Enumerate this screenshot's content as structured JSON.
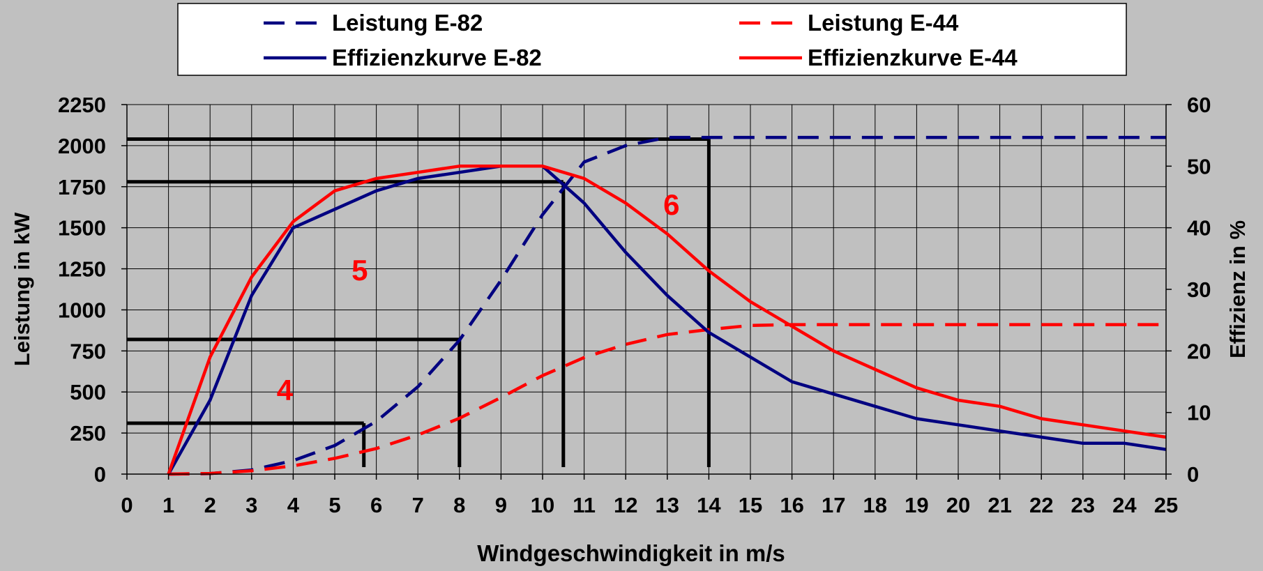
{
  "chart_data": {
    "type": "line",
    "title": "",
    "xlabel": "Windgeschwindigkeit in m/s",
    "ylabel": "Leistung in kW",
    "y2label": "Effizienz in %",
    "xlim": [
      0,
      25
    ],
    "ylim": [
      0,
      2250
    ],
    "y2lim": [
      0,
      60
    ],
    "x_ticks": [
      0,
      1,
      2,
      3,
      4,
      5,
      6,
      7,
      8,
      9,
      10,
      11,
      12,
      13,
      14,
      15,
      16,
      17,
      18,
      19,
      20,
      21,
      22,
      23,
      24,
      25
    ],
    "y_ticks": [
      0,
      250,
      500,
      750,
      1000,
      1250,
      1500,
      1750,
      2000,
      2250
    ],
    "y2_ticks": [
      0,
      10,
      20,
      30,
      40,
      50,
      60
    ],
    "grid": true,
    "legend_position": "top",
    "series": [
      {
        "name": "Leistung E-82",
        "axis": "left",
        "color": "#000080",
        "dash": true,
        "x": [
          1,
          2,
          3,
          4,
          5,
          6,
          7,
          8,
          9,
          10,
          11,
          12,
          13,
          14,
          15,
          16,
          17,
          18,
          19,
          20,
          21,
          22,
          23,
          24,
          25
        ],
        "y": [
          0,
          3,
          25,
          82,
          174,
          321,
          532,
          815,
          1180,
          1580,
          1900,
          2000,
          2050,
          2050,
          2050,
          2050,
          2050,
          2050,
          2050,
          2050,
          2050,
          2050,
          2050,
          2050,
          2050
        ]
      },
      {
        "name": "Leistung E-44",
        "axis": "left",
        "color": "#ff0000",
        "dash": true,
        "x": [
          1,
          2,
          3,
          4,
          5,
          6,
          7,
          8,
          9,
          10,
          11,
          12,
          13,
          14,
          15,
          16,
          17,
          18,
          19,
          20,
          21,
          22,
          23,
          24,
          25
        ],
        "y": [
          0,
          4,
          20,
          50,
          96,
          156,
          238,
          340,
          466,
          600,
          710,
          790,
          850,
          880,
          905,
          910,
          910,
          910,
          910,
          910,
          910,
          910,
          910,
          910,
          910
        ]
      },
      {
        "name": "Effizienzkurve E-82",
        "axis": "right",
        "color": "#000080",
        "dash": false,
        "x": [
          1,
          2,
          3,
          4,
          5,
          6,
          7,
          8,
          9,
          10,
          11,
          12,
          13,
          14,
          15,
          16,
          17,
          18,
          19,
          20,
          21,
          22,
          23,
          24,
          25
        ],
        "y": [
          0,
          12,
          29,
          40,
          43,
          46,
          48,
          49,
          50,
          50,
          44,
          36,
          29,
          23,
          19,
          15,
          13,
          11,
          9,
          8,
          7,
          6,
          5,
          5,
          4
        ]
      },
      {
        "name": "Effizienzkurve E-44",
        "axis": "right",
        "color": "#ff0000",
        "dash": false,
        "x": [
          1,
          2,
          3,
          4,
          5,
          6,
          7,
          8,
          9,
          10,
          11,
          12,
          13,
          14,
          15,
          16,
          17,
          18,
          19,
          20,
          21,
          22,
          23,
          24,
          25
        ],
        "y": [
          0,
          19,
          32,
          41,
          46,
          48,
          49,
          50,
          50,
          50,
          48,
          44,
          39,
          33,
          28,
          24,
          20,
          17,
          14,
          12,
          11,
          9,
          8,
          7,
          6
        ]
      }
    ],
    "annotations": [
      {
        "text": "4",
        "x": 3.8,
        "y": 450,
        "color": "#ff0000"
      },
      {
        "text": "5",
        "x": 5.6,
        "y": 1180,
        "color": "#ff0000"
      },
      {
        "text": "6",
        "x": 13.1,
        "y": 1580,
        "color": "#ff0000"
      }
    ],
    "reference_lines": [
      {
        "x": 5.7,
        "y": 310,
        "x_start": 0
      },
      {
        "x": 8.0,
        "y": 820,
        "x_start": 0
      },
      {
        "x": 10.5,
        "y": 1780,
        "x_start": 0
      },
      {
        "x": 14.0,
        "y": 2040,
        "x_start": 0
      }
    ]
  }
}
